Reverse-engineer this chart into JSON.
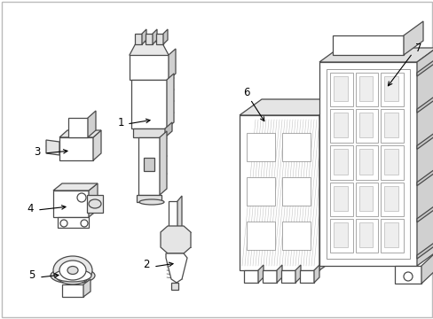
{
  "background_color": "#ffffff",
  "line_color": "#4a4a4a",
  "label_color": "#000000",
  "fig_width": 4.89,
  "fig_height": 3.6,
  "dpi": 100,
  "border_color": "#cccccc"
}
